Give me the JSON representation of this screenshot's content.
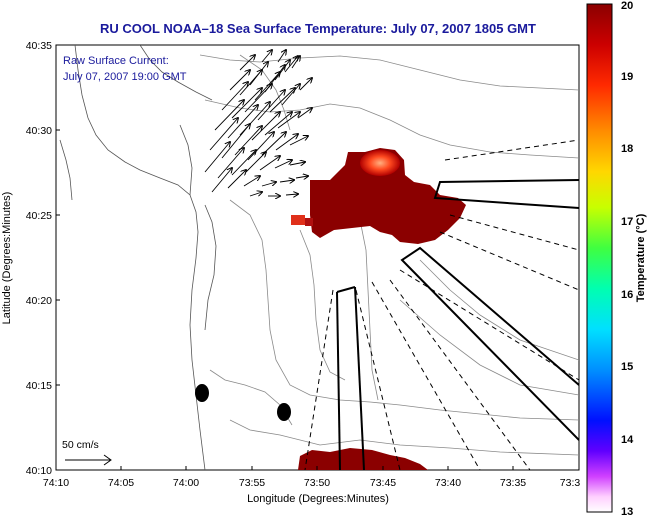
{
  "title": "RU COOL  NOAA–18  Sea Surface Temperature:  July 07, 2007 1805 GMT",
  "annotation": {
    "line1": "Raw Surface Current:",
    "line2": "July 07, 2007 19:00 GMT"
  },
  "scale_label": "50 cm/s",
  "x_axis": {
    "label": "Longitude (Degrees:Minutes)",
    "ticks": [
      "74:10",
      "74:05",
      "74:00",
      "73:55",
      "73:50",
      "73:45",
      "73:40",
      "73:35",
      "73:3"
    ]
  },
  "y_axis": {
    "label": "Latitude (Degrees:Minutes)",
    "ticks": [
      "40:35",
      "40:30",
      "40:25",
      "40:20",
      "40:15",
      "40:10"
    ]
  },
  "colorbar": {
    "label": "Temperature (°C)",
    "ticks": [
      "20",
      "19",
      "18",
      "17",
      "16",
      "15",
      "14",
      "13"
    ],
    "colors": [
      "#8b0000",
      "#cc0000",
      "#ff2a00",
      "#ff8c00",
      "#ffd700",
      "#c8ff00",
      "#40ff40",
      "#00ffb0",
      "#00e0ff",
      "#0090ff",
      "#0010ff",
      "#6000ff",
      "#d040ff",
      "#ffd0ff",
      "#ffffff"
    ]
  },
  "colors": {
    "title_text": "#1a1a9c",
    "sst_warm": "#8b0000",
    "sst_hot": "#e0301a"
  }
}
